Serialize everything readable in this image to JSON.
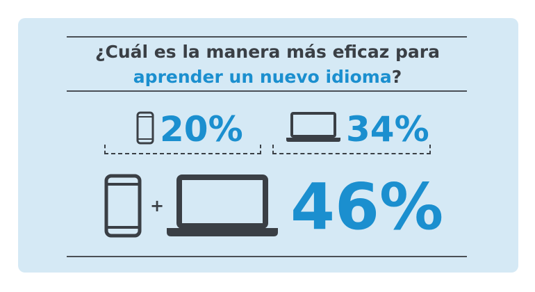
{
  "chart_data": {
    "type": "table",
    "title_line1": "¿Cuál es la manera más eficaz para",
    "title_line2_accent": "aprender un nuevo idioma",
    "title_line2_end": "?",
    "categories": [
      "smartphone-icon",
      "laptop-icon",
      "smartphone-plus-laptop-icon"
    ],
    "values": [
      20,
      34,
      46
    ],
    "value_labels": [
      "20%",
      "34%",
      "46%"
    ],
    "plus_sign": "+"
  },
  "colors": {
    "background": "#d5e9f5",
    "accent": "#1b8fcf",
    "text": "#3a3f45"
  }
}
